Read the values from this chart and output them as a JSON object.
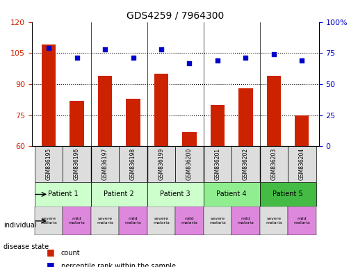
{
  "title": "GDS4259 / 7964300",
  "samples": [
    "GSM836195",
    "GSM836196",
    "GSM836197",
    "GSM836198",
    "GSM836199",
    "GSM836200",
    "GSM836201",
    "GSM836202",
    "GSM836203",
    "GSM836204"
  ],
  "bar_values": [
    109,
    82,
    94,
    83,
    95,
    67,
    80,
    88,
    94,
    75
  ],
  "percentile_values": [
    79,
    71,
    78,
    71,
    78,
    67,
    69,
    71,
    74,
    69
  ],
  "ylim_left": [
    60,
    120
  ],
  "ylim_right": [
    0,
    100
  ],
  "yticks_left": [
    60,
    75,
    90,
    105,
    120
  ],
  "yticks_right": [
    0,
    25,
    50,
    75,
    100
  ],
  "patients": [
    {
      "label": "Patient 1",
      "span": [
        0,
        2
      ],
      "color": "#ccffcc"
    },
    {
      "label": "Patient 2",
      "span": [
        2,
        4
      ],
      "color": "#ccffcc"
    },
    {
      "label": "Patient 3",
      "span": [
        4,
        6
      ],
      "color": "#ccffcc"
    },
    {
      "label": "Patient 4",
      "span": [
        6,
        8
      ],
      "color": "#90ee90"
    },
    {
      "label": "Patient 5",
      "span": [
        8,
        10
      ],
      "color": "#44bb44"
    }
  ],
  "disease_states": [
    {
      "label": "severe\nmalaria",
      "color": "#dddddd"
    },
    {
      "label": "mild\nmalaria",
      "color": "#dd88dd"
    },
    {
      "label": "severe\nmalaria",
      "color": "#dddddd"
    },
    {
      "label": "mild\nmalaria",
      "color": "#dd88dd"
    },
    {
      "label": "severe\nmalaria",
      "color": "#dddddd"
    },
    {
      "label": "mild\nmalaria",
      "color": "#dd88dd"
    },
    {
      "label": "severe\nmalaria",
      "color": "#dddddd"
    },
    {
      "label": "mild\nmalaria",
      "color": "#dd88dd"
    },
    {
      "label": "severe\nmalaria",
      "color": "#dddddd"
    },
    {
      "label": "mild\nmalaria",
      "color": "#dd88dd"
    }
  ],
  "bar_color": "#cc2200",
  "dot_color": "#0000cc",
  "grid_color": "#000000",
  "left_tick_color": "#cc2200",
  "right_tick_color": "#0000cc",
  "legend_count_color": "#cc2200",
  "legend_pct_color": "#0000cc"
}
